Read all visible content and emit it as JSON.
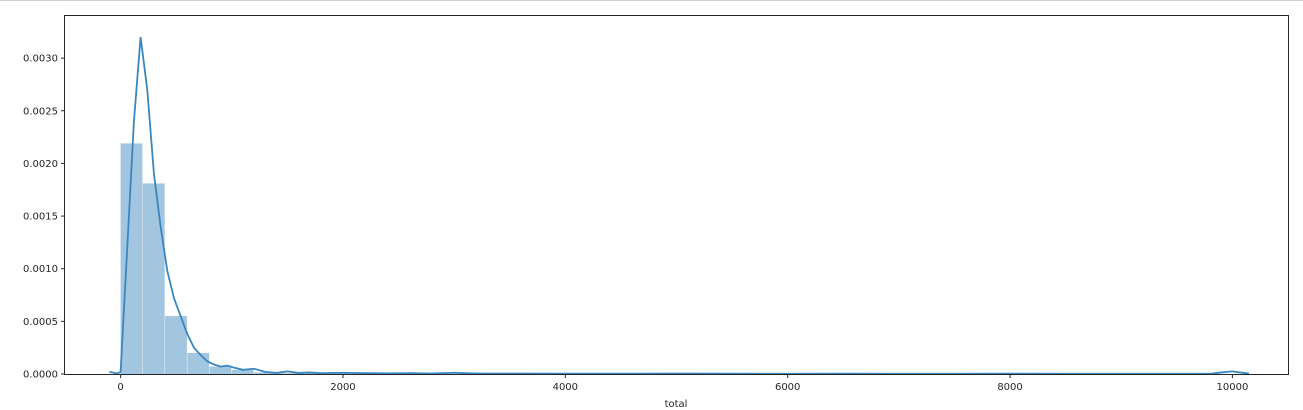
{
  "chart_data": {
    "type": "histogram",
    "title": "",
    "xlabel": "total",
    "ylabel": "",
    "xlim": [
      -500,
      10500
    ],
    "ylim": [
      0,
      0.0034
    ],
    "xticks": [
      0,
      2000,
      4000,
      6000,
      8000,
      10000
    ],
    "yticks": [
      0.0,
      0.0005,
      0.001,
      0.0015,
      0.002,
      0.0025,
      0.003
    ],
    "xtick_labels": [
      "0",
      "2000",
      "4000",
      "6000",
      "8000",
      "10000"
    ],
    "ytick_labels": [
      "0.0000",
      "0.0005",
      "0.0010",
      "0.0015",
      "0.0020",
      "0.0025",
      "0.0030"
    ],
    "grid": false,
    "legend": "none",
    "colors": {
      "bars": "#a3c6e0",
      "kde": "#3a86bf",
      "axis": "#262626"
    },
    "histogram": {
      "bin_width": 200,
      "bin_starts": [
        0,
        200,
        400,
        600,
        800,
        1000,
        1200,
        1400,
        1600,
        1800,
        2000,
        2200,
        2400,
        2600,
        2800,
        3000,
        3200,
        3400,
        3600,
        3800,
        4000,
        4200,
        4400,
        4600,
        4800,
        5000,
        5200,
        5400,
        5600,
        5800,
        6000,
        6200,
        6400,
        6600,
        6800,
        7000,
        7200,
        7400,
        7600,
        7800,
        8000,
        8200,
        8400,
        8600,
        8800,
        9000,
        9200,
        9400,
        9600,
        9800
      ],
      "densities": [
        0.00219,
        0.00181,
        0.00055,
        0.0002,
        7e-05,
        4e-05,
        1.5e-05,
        8e-06,
        5e-06,
        4e-06,
        3e-06,
        3e-06,
        2e-06,
        2e-06,
        1e-06,
        2e-06,
        1e-06,
        1e-06,
        1e-06,
        1e-06,
        1e-06,
        1e-06,
        1e-06,
        5e-07,
        5e-07,
        1e-06,
        5e-07,
        5e-07,
        5e-07,
        5e-07,
        5e-07,
        5e-07,
        5e-07,
        5e-07,
        5e-07,
        5e-07,
        5e-07,
        5e-07,
        5e-07,
        5e-07,
        5e-07,
        5e-07,
        5e-07,
        5e-07,
        5e-07,
        5e-07,
        5e-07,
        5e-07,
        5e-07,
        1e-06
      ]
    },
    "kde": {
      "x": [
        -100,
        -30,
        0,
        60,
        120,
        180,
        240,
        300,
        360,
        420,
        480,
        540,
        600,
        660,
        720,
        780,
        840,
        900,
        960,
        1020,
        1100,
        1200,
        1300,
        1400,
        1500,
        1600,
        1700,
        1800,
        2000,
        2200,
        2400,
        2600,
        2800,
        3000,
        3200,
        3500,
        4000,
        4500,
        5000,
        5500,
        6000,
        6500,
        7000,
        7500,
        8000,
        8500,
        9000,
        9500,
        9800,
        9900,
        10000,
        10100,
        10150
      ],
      "y": [
        2e-05,
        5e-06,
        2e-05,
        0.0012,
        0.0024,
        0.0032,
        0.0027,
        0.0019,
        0.0014,
        0.00098,
        0.00072,
        0.00055,
        0.00038,
        0.00025,
        0.00018,
        0.00012,
        9e-05,
        7e-05,
        8e-05,
        6e-05,
        4e-05,
        5e-05,
        2e-05,
        1e-05,
        2.5e-05,
        1e-05,
        1.5e-05,
        8e-06,
        1.2e-05,
        8e-06,
        6e-06,
        8e-06,
        4e-06,
        1.2e-05,
        4e-06,
        5e-06,
        3e-06,
        3e-06,
        4e-06,
        3e-06,
        2e-06,
        3e-06,
        2e-06,
        2e-06,
        3e-06,
        2e-06,
        2e-06,
        2e-06,
        2e-06,
        1.5e-05,
        2.5e-05,
        1e-05,
        4e-06
      ]
    }
  }
}
